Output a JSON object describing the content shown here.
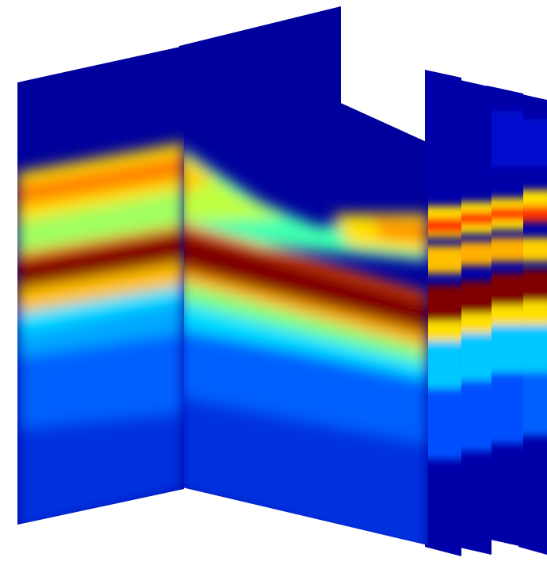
{
  "figure": {
    "description_visible_text": "",
    "panels": [
      {
        "name": "left-panel",
        "role": "front-left slice"
      },
      {
        "name": "middle-panel",
        "role": "front-right slice"
      },
      {
        "name": "back-slice-1",
        "role": "stacked rear slice"
      },
      {
        "name": "back-slice-2",
        "role": "stacked rear slice"
      },
      {
        "name": "back-slice-3",
        "role": "stacked rear slice"
      },
      {
        "name": "back-slice-4",
        "role": "stacked rear slice"
      }
    ],
    "colormap": {
      "name": "jet",
      "stops": [
        "#00008f",
        "#0000ff",
        "#00a0ff",
        "#00ffff",
        "#80ff80",
        "#ffff00",
        "#ff8000",
        "#ff0000",
        "#800000"
      ]
    }
  }
}
